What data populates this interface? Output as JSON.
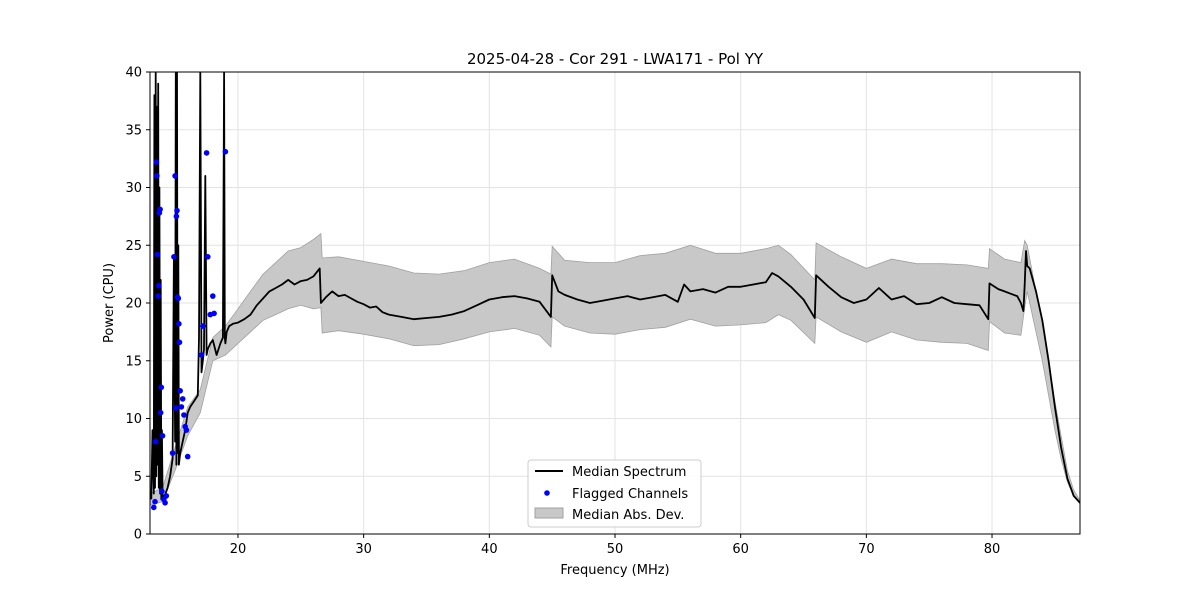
{
  "chart_data": {
    "type": "line",
    "title": "2025-04-28 - Cor 291 - LWA171 - Pol YY",
    "xlabel": "Frequency (MHz)",
    "ylabel": "Power (CPU)",
    "xlim": [
      13,
      87
    ],
    "ylim": [
      0,
      40
    ],
    "xticks": [
      20,
      30,
      40,
      50,
      60,
      70,
      80
    ],
    "yticks": [
      0,
      5,
      10,
      15,
      20,
      25,
      30,
      35,
      40
    ],
    "grid": true,
    "legend_position": "bottom-center",
    "colors": {
      "median": "#000000",
      "flagged": "#0000ff",
      "mad_fill": "#c8c8c8",
      "mad_edge": "#a0a0a0"
    },
    "series": [
      {
        "name": "Median Spectrum",
        "kind": "line",
        "x": [
          13.1,
          13.2,
          13.3,
          13.35,
          13.4,
          13.45,
          13.5,
          13.55,
          13.6,
          13.65,
          13.7,
          13.75,
          13.8,
          13.85,
          13.9,
          13.95,
          14.0,
          14.2,
          14.4,
          14.6,
          14.8,
          14.9,
          15.0,
          15.05,
          15.1,
          15.15,
          15.2,
          15.25,
          15.3,
          15.4,
          15.6,
          15.8,
          16.0,
          16.2,
          16.5,
          16.8,
          16.9,
          17.0,
          17.1,
          17.2,
          17.3,
          17.4,
          17.5,
          17.6,
          17.8,
          18.0,
          18.3,
          18.6,
          18.8,
          18.9,
          18.95,
          19.0,
          19.1,
          19.3,
          19.6,
          20.0,
          20.5,
          21.0,
          21.5,
          22.0,
          22.5,
          23.0,
          23.5,
          24.0,
          24.5,
          25.0,
          25.5,
          26.0,
          26.5,
          26.6,
          27.0,
          27.5,
          28.0,
          28.5,
          29.0,
          29.5,
          30.0,
          30.5,
          31.0,
          31.5,
          32.0,
          33.0,
          34.0,
          35.0,
          36.0,
          37.0,
          38.0,
          39.0,
          40.0,
          41.0,
          42.0,
          43.0,
          44.0,
          44.9,
          45.0,
          45.5,
          46.0,
          47.0,
          48.0,
          49.0,
          50.0,
          51.0,
          52.0,
          53.0,
          54.0,
          55.0,
          55.5,
          56.0,
          57.0,
          58.0,
          59.0,
          60.0,
          61.0,
          62.0,
          62.5,
          63.0,
          64.0,
          65.0,
          65.9,
          66.0,
          67.0,
          68.0,
          69.0,
          70.0,
          71.0,
          72.0,
          73.0,
          74.0,
          75.0,
          76.0,
          77.0,
          78.0,
          79.0,
          79.7,
          79.8,
          80.5,
          81.0,
          81.5,
          82.0,
          82.3,
          82.5,
          82.6,
          82.7,
          82.8,
          83.0,
          83.5,
          84.0,
          84.5,
          85.0,
          85.5,
          86.0,
          86.5,
          87.0
        ],
        "y": [
          3.0,
          9.0,
          3.5,
          38.0,
          4.0,
          40.0,
          5.0,
          37.0,
          6.0,
          39.0,
          4.0,
          30.0,
          3.5,
          22.0,
          3.0,
          9.0,
          3.2,
          3.4,
          4.0,
          5.0,
          6.5,
          24.0,
          8.0,
          40.0,
          6.0,
          40.0,
          7.0,
          25.0,
          6.0,
          7.0,
          8.0,
          9.0,
          10.5,
          11.0,
          11.5,
          12.0,
          17.0,
          40.0,
          14.0,
          15.0,
          16.0,
          31.0,
          15.5,
          16.0,
          16.5,
          16.8,
          15.5,
          16.5,
          17.0,
          40.0,
          17.0,
          16.5,
          17.5,
          18.0,
          18.2,
          18.3,
          18.6,
          19.0,
          19.8,
          20.4,
          21.0,
          21.3,
          21.6,
          22.0,
          21.6,
          21.9,
          22.0,
          22.3,
          23.0,
          20.0,
          20.5,
          21.0,
          20.6,
          20.7,
          20.4,
          20.1,
          19.9,
          19.6,
          19.7,
          19.2,
          19.0,
          18.8,
          18.6,
          18.7,
          18.8,
          19.0,
          19.3,
          19.8,
          20.3,
          20.5,
          20.6,
          20.4,
          20.1,
          18.8,
          22.4,
          21.0,
          20.7,
          20.3,
          20.0,
          20.2,
          20.4,
          20.6,
          20.3,
          20.5,
          20.7,
          20.1,
          21.6,
          21.0,
          21.2,
          20.9,
          21.4,
          21.4,
          21.6,
          21.8,
          22.6,
          22.3,
          21.4,
          20.3,
          18.7,
          22.4,
          21.4,
          20.5,
          20.0,
          20.3,
          21.3,
          20.3,
          20.6,
          19.9,
          20.0,
          20.5,
          20.0,
          19.9,
          19.8,
          18.6,
          21.7,
          21.2,
          21.0,
          20.8,
          20.6,
          20.0,
          19.3,
          21.6,
          24.5,
          23.2,
          23.0,
          21.0,
          18.5,
          15.0,
          11.0,
          7.5,
          4.8,
          3.3,
          2.7
        ]
      },
      {
        "name": "Flagged Channels",
        "kind": "scatter",
        "x": [
          13.3,
          13.4,
          13.45,
          13.5,
          13.55,
          13.6,
          13.65,
          13.7,
          13.75,
          13.8,
          13.85,
          13.9,
          13.95,
          14.0,
          14.1,
          14.2,
          14.3,
          14.8,
          14.9,
          15.0,
          15.05,
          15.1,
          15.15,
          15.2,
          15.25,
          15.3,
          15.35,
          15.4,
          15.5,
          15.6,
          15.7,
          15.8,
          15.9,
          16.0,
          17.1,
          17.2,
          17.5,
          17.6,
          17.8,
          18.0,
          18.1,
          19.0
        ],
        "y": [
          2.3,
          2.8,
          8.0,
          32.2,
          31.0,
          24.2,
          20.6,
          21.5,
          27.8,
          28.1,
          10.5,
          12.7,
          3.7,
          8.5,
          3.0,
          2.7,
          3.3,
          7.0,
          24.0,
          31.0,
          10.9,
          27.5,
          28.0,
          20.5,
          20.4,
          18.2,
          16.6,
          12.4,
          11.0,
          11.7,
          10.3,
          9.3,
          9.0,
          6.7,
          15.5,
          18.0,
          33.0,
          24.0,
          19.0,
          20.6,
          19.1,
          33.1
        ]
      },
      {
        "name": "Median Abs. Dev.",
        "kind": "band",
        "x": [
          13.0,
          14.0,
          15.0,
          16.0,
          17.0,
          18.0,
          19.0,
          20.0,
          21.0,
          22.0,
          23.0,
          24.0,
          25.0,
          26.0,
          26.6,
          26.7,
          28.0,
          30.0,
          32.0,
          34.0,
          36.0,
          38.0,
          40.0,
          42.0,
          44.0,
          44.9,
          45.0,
          46.0,
          48.0,
          50.0,
          52.0,
          54.0,
          56.0,
          58.0,
          60.0,
          62.0,
          63.0,
          64.0,
          65.9,
          66.0,
          68.0,
          70.0,
          72.0,
          74.0,
          76.0,
          78.0,
          79.7,
          79.8,
          81.0,
          82.3,
          82.6,
          82.8,
          83.5,
          84.0,
          84.5,
          85.0,
          85.5,
          86.0,
          86.5,
          87.0
        ],
        "lower": [
          2.5,
          2.8,
          5.5,
          8.5,
          10.5,
          15.0,
          15.5,
          16.5,
          17.5,
          18.5,
          19.0,
          19.5,
          19.8,
          19.5,
          19.6,
          17.4,
          17.6,
          17.3,
          16.9,
          16.3,
          16.4,
          16.9,
          17.5,
          17.8,
          17.2,
          16.2,
          18.8,
          18.0,
          17.4,
          17.3,
          17.7,
          17.9,
          18.6,
          18.0,
          18.1,
          18.3,
          19.0,
          18.5,
          16.5,
          18.8,
          17.5,
          16.6,
          17.5,
          16.8,
          16.6,
          16.5,
          15.9,
          18.4,
          17.4,
          17.2,
          19.6,
          21.0,
          17.5,
          15.0,
          12.0,
          9.0,
          6.5,
          4.5,
          3.3,
          2.6
        ],
        "upper": [
          3.5,
          4.0,
          7.5,
          11.0,
          12.5,
          17.0,
          18.0,
          19.5,
          21.0,
          22.5,
          23.5,
          24.5,
          24.8,
          25.5,
          26.0,
          23.9,
          24.0,
          23.6,
          23.2,
          22.6,
          22.5,
          22.8,
          23.5,
          23.8,
          23.0,
          22.5,
          24.9,
          23.7,
          23.5,
          23.5,
          24.1,
          24.3,
          25.0,
          24.3,
          24.3,
          24.7,
          25.0,
          24.2,
          22.0,
          25.2,
          24.0,
          23.0,
          23.8,
          23.4,
          23.4,
          23.3,
          23.0,
          24.7,
          23.8,
          23.5,
          25.4,
          25.0,
          21.0,
          18.5,
          15.0,
          11.5,
          8.5,
          5.5,
          3.8,
          2.9
        ]
      }
    ]
  }
}
